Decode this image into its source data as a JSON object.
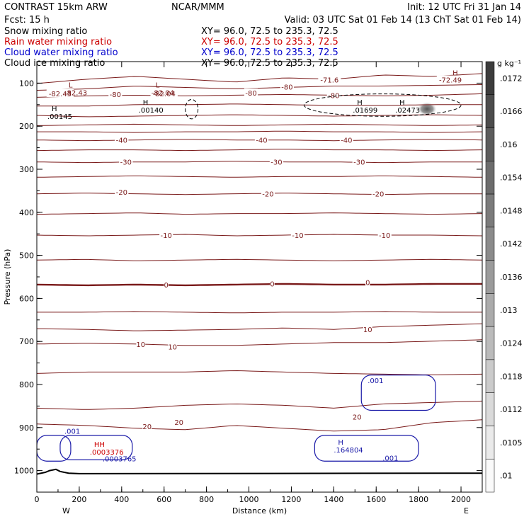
{
  "header": {
    "model": "CONTRAST 15km ARW",
    "org": "NCAR/MMM",
    "init": "Init: 12 UTC Fri 31 Jan 14",
    "fcst": "Fcst:    15 h",
    "valid": "Valid: 03 UTC Sat 01 Feb 14 (13 ChT Sat 01 Feb 14)",
    "fields": [
      {
        "name": "Snow mixing ratio",
        "xy": "XY=   96.0, 72.5 to 235.3, 72.5",
        "color": "#000000"
      },
      {
        "name": "Rain water mixing ratio",
        "xy": "XY=   96.0, 72.5 to 235.3, 72.5",
        "color": "#cc0000"
      },
      {
        "name": "Cloud water mixing ratio",
        "xy": "XY=   96.0, 72.5 to 235.3, 72.5",
        "color": "#0000cc"
      },
      {
        "name": "Cloud ice mixing ratio",
        "xy": "XY=   96.0, 72.5 to 235.3, 72.5",
        "color": "#000000"
      }
    ]
  },
  "colors": {
    "temperature": "#7a1a1a",
    "cloud_water": "#1a1aa8",
    "cloud_ice": "#000000",
    "terrain": "#000000",
    "axis": "#000000"
  },
  "chart_data": {
    "type": "cross-section",
    "xlabel": "Distance (km)",
    "ylabel": "Pressure (hPa)",
    "xlim": [
      0,
      2100
    ],
    "ylim": [
      1050,
      50
    ],
    "x_ticks": [
      0,
      200,
      400,
      600,
      800,
      1000,
      1200,
      1400,
      1600,
      1800,
      2000
    ],
    "y_ticks": [
      100,
      200,
      300,
      400,
      500,
      600,
      700,
      800,
      900,
      1000
    ],
    "x_end_labels": {
      "left": "W",
      "right": "E"
    },
    "colorbar": {
      "units": "g kg⁻¹",
      "levels": [
        ".0172",
        ".0166",
        ".016",
        ".0154",
        ".0148",
        ".0142",
        ".0136",
        ".013",
        ".0124",
        ".0118",
        ".0112",
        ".0105",
        ".01"
      ]
    },
    "temperature_contours": [
      {
        "p": 91,
        "shape": [
          6,
          0,
          -4,
          0,
          4,
          -2,
          0,
          -6,
          -4,
          -8
        ]
      },
      {
        "p": 110,
        "shape": [
          4,
          2,
          -2,
          0,
          2,
          0,
          -2,
          -2,
          -3,
          -4
        ]
      },
      {
        "p": 128,
        "shape": [
          3,
          1,
          0,
          1,
          0,
          -1,
          0,
          1,
          0,
          -2
        ]
      },
      {
        "p": 150,
        "shape": [
          2,
          2,
          0,
          0,
          -1,
          0,
          1,
          1,
          0,
          0
        ]
      },
      {
        "p": 175,
        "shape": [
          0,
          2,
          1,
          0,
          -1,
          0,
          1,
          0,
          -1,
          0
        ]
      },
      {
        "p": 197,
        "shape": [
          1,
          0,
          -1,
          0,
          1,
          0,
          -1,
          0,
          1,
          0
        ]
      },
      {
        "p": 213,
        "shape": [
          0,
          0,
          1,
          0,
          0,
          -1,
          0,
          0,
          1,
          0
        ]
      },
      {
        "p": 232,
        "shape": [
          0,
          1,
          0,
          -1,
          0,
          0,
          1,
          0,
          -1,
          0
        ]
      },
      {
        "p": 255,
        "shape": [
          1,
          0,
          0,
          1,
          0,
          -1,
          0,
          0,
          1,
          0
        ]
      },
      {
        "p": 283,
        "shape": [
          0,
          1,
          0,
          0,
          -1,
          0,
          0,
          1,
          0,
          0
        ]
      },
      {
        "p": 317,
        "shape": [
          1,
          0,
          -1,
          0,
          1,
          0,
          0,
          -1,
          0,
          1
        ]
      },
      {
        "p": 357,
        "shape": [
          0,
          -1,
          0,
          1,
          0,
          -1,
          0,
          1,
          0,
          0
        ]
      },
      {
        "p": 403,
        "shape": [
          1,
          0,
          -1,
          1,
          0,
          0,
          -1,
          0,
          1,
          0
        ]
      },
      {
        "p": 453,
        "shape": [
          0,
          1,
          0,
          -1,
          1,
          0,
          -1,
          0,
          0,
          1
        ]
      },
      {
        "p": 511,
        "shape": [
          0,
          -1,
          1,
          0,
          -1,
          0,
          1,
          0,
          -1,
          0
        ]
      },
      {
        "p": 568,
        "shape": [
          0,
          1,
          0,
          1,
          0,
          -1,
          0,
          0,
          -1,
          -1
        ],
        "bold": true
      },
      {
        "p": 632,
        "shape": [
          0,
          0,
          -1,
          0,
          1,
          0,
          0,
          -1,
          0,
          0
        ]
      },
      {
        "p": 672,
        "shape": [
          -1,
          0,
          2,
          1,
          0,
          -2,
          0,
          -4,
          -6,
          -8
        ]
      },
      {
        "p": 706,
        "shape": [
          0,
          -1,
          0,
          2,
          2,
          0,
          -2,
          -2,
          -4,
          -6
        ]
      },
      {
        "p": 771,
        "shape": [
          2,
          0,
          0,
          0,
          -2,
          0,
          2,
          3,
          4,
          3
        ]
      },
      {
        "p": 855,
        "shape": [
          0,
          2,
          0,
          -4,
          -6,
          -4,
          0,
          -6,
          -8,
          -10
        ]
      },
      {
        "p": 905,
        "shape": [
          -8,
          -6,
          -2,
          0,
          -6,
          -2,
          2,
          0,
          -10,
          -14
        ]
      }
    ],
    "temperature_labels": [
      {
        "text": "-71.6",
        "x": 1380,
        "p": 92
      },
      {
        "text": "-72.49",
        "x": 1950,
        "p": 92
      },
      {
        "text": "-80",
        "x": 1180,
        "p": 108
      },
      {
        "text": "-80",
        "x": 1400,
        "p": 128
      },
      {
        "text": "-80",
        "x": 370,
        "p": 126
      },
      {
        "text": "-80",
        "x": 1010,
        "p": 122
      },
      {
        "text": "-82.43",
        "x": 110,
        "p": 124
      },
      {
        "text": "-82.04",
        "x": 600,
        "p": 124
      },
      {
        "text": "-40",
        "x": 400,
        "p": 232
      },
      {
        "text": "-40",
        "x": 1060,
        "p": 232
      },
      {
        "text": "-40",
        "x": 1460,
        "p": 232
      },
      {
        "text": "-30",
        "x": 420,
        "p": 283
      },
      {
        "text": "-30",
        "x": 1130,
        "p": 283
      },
      {
        "text": "-30",
        "x": 1520,
        "p": 283
      },
      {
        "text": "-20",
        "x": 400,
        "p": 353
      },
      {
        "text": "-20",
        "x": 1090,
        "p": 357
      },
      {
        "text": "-20",
        "x": 1610,
        "p": 357
      },
      {
        "text": "-10",
        "x": 610,
        "p": 453
      },
      {
        "text": "-10",
        "x": 1230,
        "p": 453
      },
      {
        "text": "-10",
        "x": 1640,
        "p": 453
      },
      {
        "text": "0",
        "x": 610,
        "p": 568
      },
      {
        "text": "0",
        "x": 1110,
        "p": 566
      },
      {
        "text": "0",
        "x": 1560,
        "p": 562
      },
      {
        "text": "10",
        "x": 490,
        "p": 706
      },
      {
        "text": "10",
        "x": 640,
        "p": 712
      },
      {
        "text": "10",
        "x": 1560,
        "p": 672
      },
      {
        "text": "20",
        "x": 520,
        "p": 897
      },
      {
        "text": "20",
        "x": 670,
        "p": 887
      },
      {
        "text": "20",
        "x": 1510,
        "p": 875
      }
    ],
    "cloud_water_regions": [
      {
        "x0": 1530,
        "x1": 1880,
        "p0": 778,
        "p1": 860,
        "label": ".001",
        "lx": 1560,
        "lp": 790
      },
      {
        "x0": 1310,
        "x1": 1800,
        "p0": 918,
        "p1": 978,
        "label": ".001",
        "lx": 1630,
        "lp": 970
      },
      {
        "x0": 110,
        "x1": 450,
        "p0": 918,
        "p1": 975,
        "label": ".001",
        "lx": 130,
        "lp": 908
      },
      {
        "x0": 0,
        "x1": 160,
        "p0": 918,
        "p1": 978,
        "label": "",
        "lx": 0,
        "lp": 0
      }
    ],
    "cloud_ice_regions": [
      {
        "x0": 1260,
        "x1": 2000,
        "p0": 125,
        "p1": 177
      },
      {
        "x0": 700,
        "x1": 760,
        "p0": 138,
        "p1": 183
      }
    ],
    "extrema": [
      {
        "kind": "L",
        "value": "-82.43",
        "x": 150,
        "p": 110,
        "color": "#7a1a1a"
      },
      {
        "kind": "L",
        "value": "-82.04",
        "x": 560,
        "p": 110,
        "color": "#7a1a1a"
      },
      {
        "kind": "H",
        "value": "",
        "x": 1960,
        "p": 82,
        "color": "#7a1a1a"
      },
      {
        "kind": "H",
        "value": ".00145",
        "x": 70,
        "p": 165,
        "color": "#000000"
      },
      {
        "kind": "H",
        "value": ".00140",
        "x": 500,
        "p": 150,
        "color": "#000000"
      },
      {
        "kind": "H",
        "value": ".01699",
        "x": 1510,
        "p": 150,
        "color": "#000000"
      },
      {
        "kind": "H",
        "value": ".02473",
        "x": 1710,
        "p": 150,
        "color": "#000000"
      },
      {
        "kind": "H",
        "value": ".164804",
        "x": 1420,
        "p": 940,
        "color": "#1a1aa8"
      },
      {
        "kind": "HH",
        "value": ".0003376",
        "x": 270,
        "p": 945,
        "color": "#cc0000"
      },
      {
        "kind": "",
        "value": ".0003765",
        "x": 330,
        "p": 960,
        "color": "#1a1aa8"
      }
    ],
    "snow_max": {
      "x": 1840,
      "p": 160,
      "value": ".0172"
    },
    "terrain": {
      "x": [
        0,
        40,
        60,
        90,
        110,
        150,
        200,
        2100
      ],
      "p": [
        1008,
        1004,
        1000,
        997,
        1002,
        1006,
        1007,
        1006
      ]
    }
  }
}
